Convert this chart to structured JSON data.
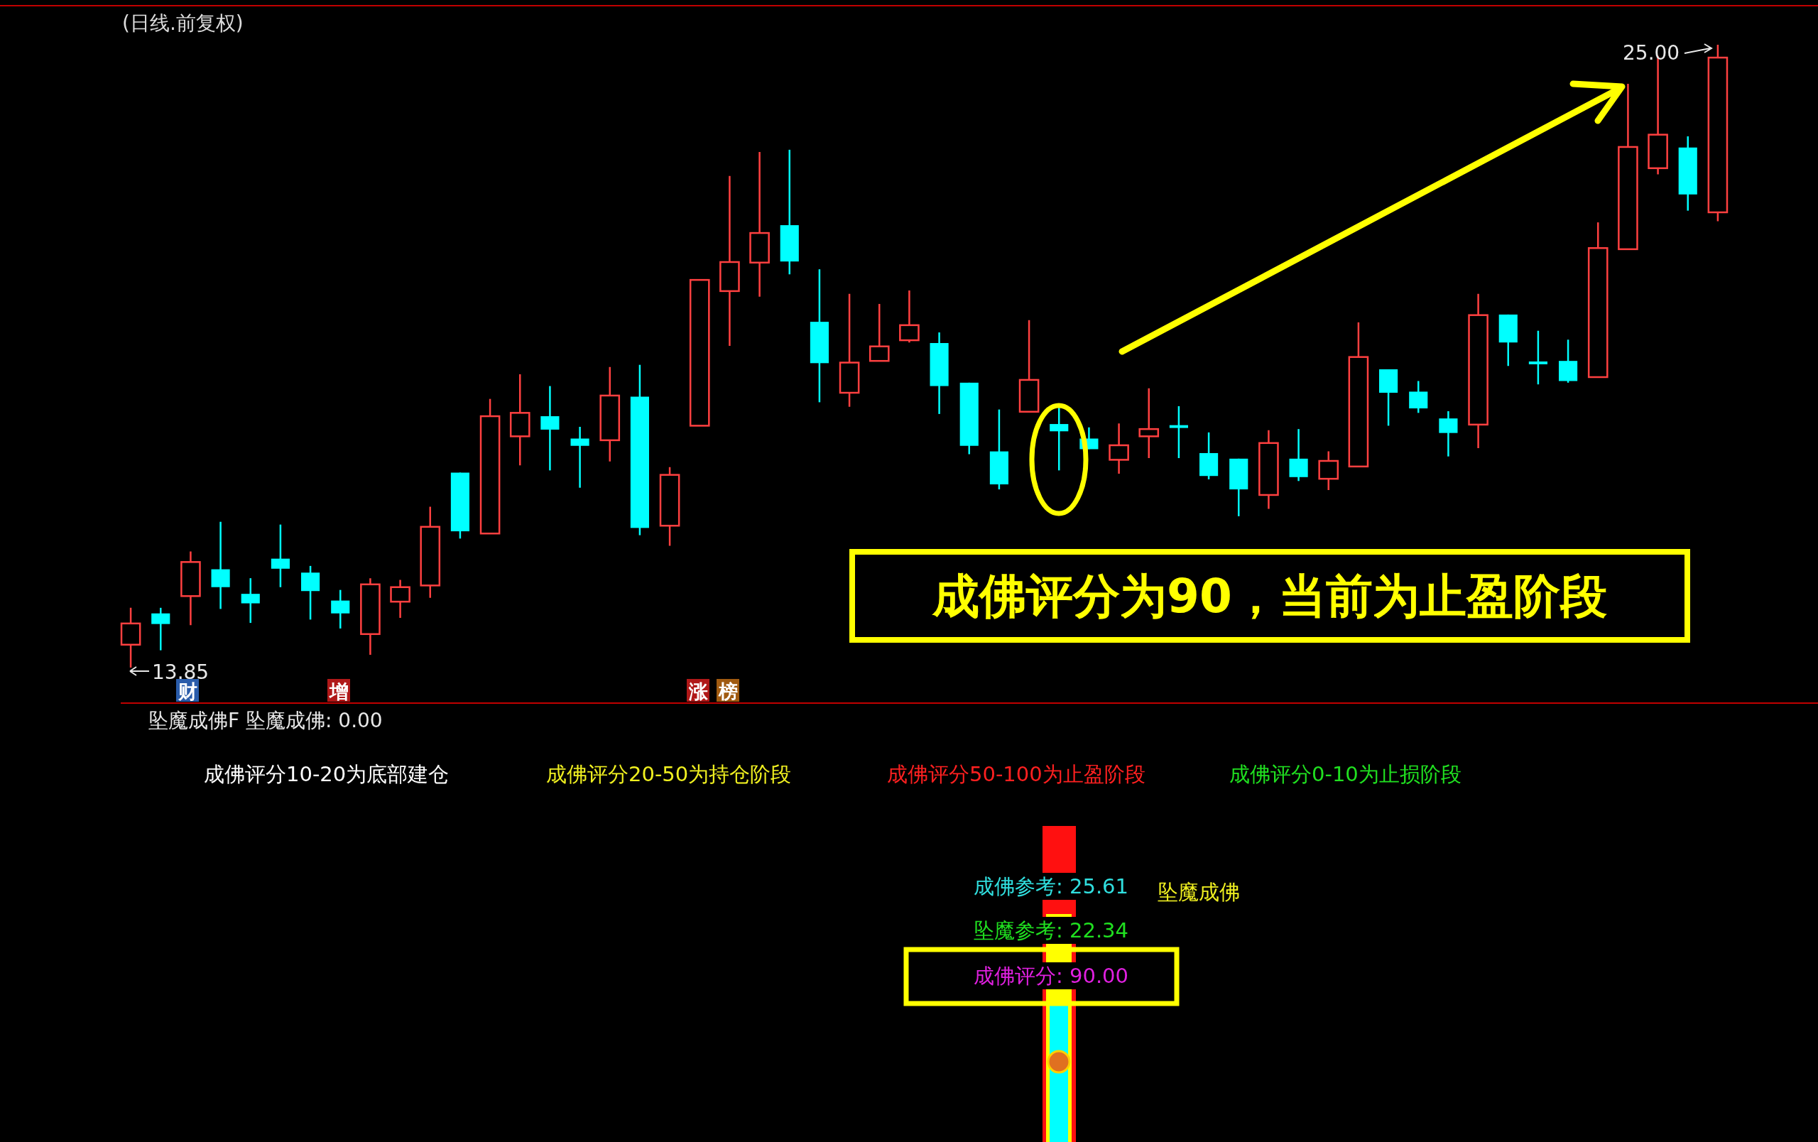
{
  "chart_data": [
    {
      "type": "candlestick",
      "title": "(日线.前复权)",
      "categories": [
        null,
        null,
        null,
        null,
        null,
        null,
        null,
        null,
        null,
        null,
        null,
        null,
        null,
        null,
        null,
        null,
        null,
        null,
        null,
        null,
        null,
        null,
        null,
        null,
        null,
        null,
        null,
        null,
        null,
        null,
        null,
        null,
        null,
        null,
        null,
        null,
        null,
        null,
        null,
        null,
        null,
        null,
        null,
        null,
        null,
        null,
        null,
        null,
        null,
        null,
        null,
        null,
        null,
        null
      ],
      "ohlc": [
        [
          14.26,
          14.92,
          13.85,
          14.64
        ],
        [
          14.82,
          14.92,
          14.16,
          14.63
        ],
        [
          15.13,
          15.93,
          14.61,
          15.74
        ],
        [
          15.61,
          16.46,
          14.9,
          15.29
        ],
        [
          15.17,
          15.45,
          14.65,
          15.0
        ],
        [
          15.8,
          16.41,
          15.29,
          15.62
        ],
        [
          15.55,
          15.67,
          14.71,
          15.22
        ],
        [
          15.05,
          15.24,
          14.55,
          14.82
        ],
        [
          14.45,
          15.45,
          14.08,
          15.34
        ],
        [
          15.03,
          15.42,
          14.74,
          15.29
        ],
        [
          15.32,
          16.73,
          15.1,
          16.37
        ],
        [
          17.34,
          17.34,
          16.16,
          16.29
        ],
        [
          16.25,
          18.66,
          16.25,
          18.35
        ],
        [
          17.99,
          19.1,
          17.47,
          18.41
        ],
        [
          18.35,
          18.89,
          17.38,
          18.11
        ],
        [
          17.95,
          18.16,
          17.07,
          17.82
        ],
        [
          17.92,
          19.23,
          17.54,
          18.72
        ],
        [
          18.7,
          19.27,
          16.22,
          16.35
        ],
        [
          16.39,
          17.44,
          16.03,
          17.3
        ],
        [
          18.18,
          20.79,
          18.18,
          20.79
        ],
        [
          20.59,
          22.65,
          19.61,
          21.11
        ],
        [
          21.1,
          23.08,
          20.49,
          21.63
        ],
        [
          21.77,
          23.12,
          20.89,
          21.12
        ],
        [
          20.04,
          20.98,
          18.6,
          19.3
        ],
        [
          18.77,
          20.54,
          18.52,
          19.31
        ],
        [
          19.34,
          20.36,
          19.34,
          19.6
        ],
        [
          19.71,
          20.6,
          19.67,
          19.98
        ],
        [
          19.66,
          19.85,
          18.39,
          18.89
        ],
        [
          18.95,
          18.95,
          17.67,
          17.82
        ],
        [
          17.72,
          18.47,
          17.04,
          17.13
        ],
        [
          18.43,
          20.07,
          18.43,
          19.0
        ],
        [
          18.21,
          18.5,
          17.38,
          18.08
        ],
        [
          17.95,
          18.15,
          17.76,
          17.76
        ],
        [
          17.57,
          18.22,
          17.32,
          17.83
        ],
        [
          17.99,
          18.85,
          17.6,
          18.12
        ],
        [
          18.19,
          18.53,
          17.6,
          18.14
        ],
        [
          17.69,
          18.06,
          17.22,
          17.28
        ],
        [
          17.59,
          17.59,
          16.56,
          17.04
        ],
        [
          16.94,
          18.1,
          16.69,
          17.87
        ],
        [
          17.59,
          18.12,
          17.19,
          17.26
        ],
        [
          17.23,
          17.72,
          17.03,
          17.55
        ],
        [
          17.45,
          20.03,
          17.45,
          19.41
        ],
        [
          19.19,
          19.19,
          18.18,
          18.77
        ],
        [
          18.79,
          18.98,
          18.41,
          18.49
        ],
        [
          18.31,
          18.44,
          17.63,
          18.05
        ],
        [
          18.2,
          20.54,
          17.78,
          20.16
        ],
        [
          20.17,
          20.17,
          19.25,
          19.67
        ],
        [
          19.33,
          19.88,
          18.92,
          19.28
        ],
        [
          19.34,
          19.72,
          18.95,
          18.98
        ],
        [
          19.05,
          21.82,
          19.05,
          21.36
        ],
        [
          21.34,
          24.3,
          21.34,
          23.17
        ],
        [
          22.79,
          24.8,
          22.68,
          23.39
        ],
        [
          23.16,
          23.36,
          22.03,
          22.32
        ],
        [
          22.0,
          25.0,
          21.84,
          24.77
        ]
      ],
      "colors": [
        "#ff4040",
        "#00ffff",
        "#ff4040",
        "#00ffff",
        "#00ffff",
        "#00ffff",
        "#00ffff",
        "#00ffff",
        "#ff4040",
        "#ff4040",
        "#ff4040",
        "#00ffff",
        "#ff4040",
        "#ff4040",
        "#00ffff",
        "#00ffff",
        "#ff4040",
        "#00ffff",
        "#ff4040",
        "#ff4040",
        "#ff4040",
        "#ff4040",
        "#00ffff",
        "#00ffff",
        "#ff4040",
        "#ff4040",
        "#ff4040",
        "#00ffff",
        "#00ffff",
        "#00ffff",
        "#ff4040",
        "#00ffff",
        "#00ffff",
        "#ff4040",
        "#ff4040",
        "#00ffff",
        "#00ffff",
        "#00ffff",
        "#ff4040",
        "#00ffff",
        "#ff4040",
        "#ff4040",
        "#00ffff",
        "#00ffff",
        "#00ffff",
        "#ff4040",
        "#00ffff",
        "#00ffff",
        "#00ffff",
        "#ff4040",
        "#ff4040",
        "#ff4040",
        "#00ffff",
        "#ff4040"
      ],
      "annotations": [
        "13.85",
        "25.00",
        "财",
        "增",
        "涨",
        "榜",
        "成佛评分为90，当前为止盈阶段"
      ]
    },
    {
      "type": "other",
      "title": "坠魔成佛F  坠魔成佛: 0.00",
      "annotations": [
        "成佛评分10-20为底部建仓",
        "成佛评分20-50为持仓阶段",
        "成佛评分50-100为止盈阶段",
        "成佛评分0-10为止损阶段",
        "成佛参考: 25.61",
        "坠魔成佛",
        "坠魔参考: 22.34",
        "成佛评分: 90.00"
      ]
    }
  ]
}
